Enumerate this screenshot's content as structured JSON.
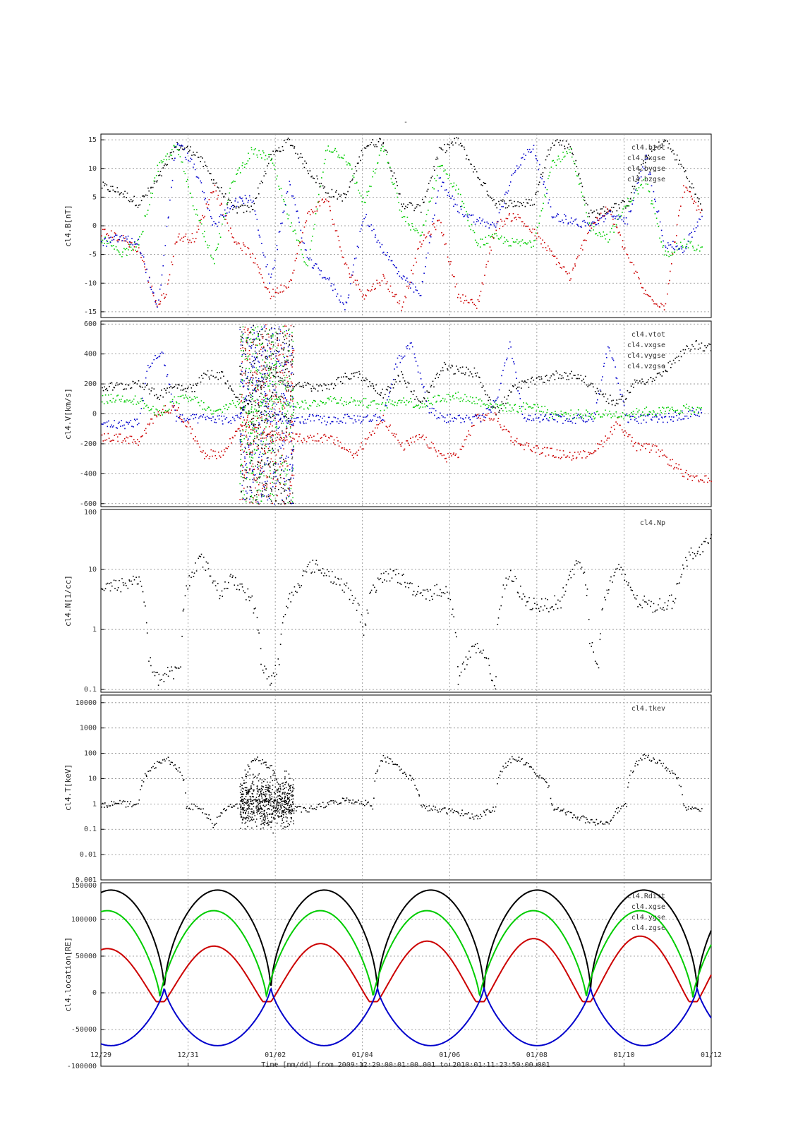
{
  "figure": {
    "top_mark": "-",
    "x_axis_title": "Time [mm/dd]  from 2009:12:29:00:01:00.001  to  2010:01:11:23:59:00.001",
    "x_ticks": [
      "12/29",
      "12/31",
      "01/02",
      "01/04",
      "01/06",
      "01/08",
      "01/10",
      "01/12"
    ]
  },
  "colors": {
    "black": "#000000",
    "red": "#cc0000",
    "green": "#00cc00",
    "blue": "#0000cc",
    "grid": "#888888"
  },
  "chart_data": [
    {
      "type": "scatter",
      "ylabel": "cl4.B[nT]",
      "ylim": [
        -16,
        16
      ],
      "scale": "linear",
      "y_ticks": [
        "15",
        "10",
        "5",
        "0",
        "-5",
        "-10",
        "-15"
      ],
      "legend": [
        "cl4.btot",
        "cl4.bxgse",
        "cl4.bygse",
        "cl4.bzgse"
      ],
      "legend_position": "top-right",
      "grid": true,
      "x_days": [
        0,
        13
      ],
      "series": [
        {
          "name": "cl4.btot",
          "color": "black",
          "x": [
            0.0,
            0.4,
            0.8,
            1.2,
            1.6,
            2.0,
            2.4,
            2.8,
            3.2,
            3.6,
            4.0,
            4.4,
            4.8,
            5.2,
            5.6,
            6.0,
            6.4,
            6.8,
            7.2,
            7.6,
            8.0,
            8.4,
            8.8,
            9.2,
            9.6,
            10.0,
            10.4,
            10.8,
            11.2,
            11.6,
            12.0,
            12.4,
            12.8
          ],
          "y": [
            7,
            6,
            4,
            8,
            14,
            13,
            8,
            3,
            3,
            12,
            15,
            10,
            6,
            5,
            14,
            15,
            4,
            3,
            13,
            15,
            9,
            4,
            4,
            4,
            15,
            14,
            2,
            3,
            4,
            12,
            15,
            10,
            3
          ]
        },
        {
          "name": "cl4.bxgse",
          "color": "red",
          "x": [
            0.0,
            0.4,
            0.8,
            1.2,
            1.4,
            1.6,
            2.0,
            2.4,
            2.8,
            3.2,
            3.6,
            4.0,
            4.4,
            4.8,
            5.2,
            5.6,
            6.0,
            6.4,
            6.8,
            7.2,
            7.6,
            8.0,
            8.4,
            8.8,
            9.2,
            9.6,
            10.0,
            10.4,
            10.8,
            11.2,
            11.6,
            12.0,
            12.4,
            12.8
          ],
          "y": [
            -1,
            -2,
            -4,
            -14,
            -11,
            -2,
            -2,
            7,
            -2,
            -5,
            -12,
            -10,
            2,
            5,
            -7,
            -12,
            -9,
            -14,
            -3,
            1,
            -12,
            -14,
            0,
            2,
            -1,
            -5,
            -9,
            0,
            3,
            -5,
            -12,
            -14,
            7,
            2
          ]
        },
        {
          "name": "cl4.bygse",
          "color": "green",
          "x": [
            0.0,
            0.4,
            0.8,
            1.2,
            1.6,
            2.0,
            2.4,
            2.8,
            3.2,
            3.6,
            4.0,
            4.4,
            4.8,
            5.2,
            5.6,
            6.0,
            6.4,
            6.8,
            7.2,
            7.6,
            8.0,
            8.4,
            8.8,
            9.2,
            9.6,
            10.0,
            10.4,
            10.8,
            11.2,
            11.6,
            12.0,
            12.4,
            12.8
          ],
          "y": [
            -2,
            -5,
            -3,
            10,
            14,
            3,
            -6,
            8,
            13,
            12,
            1,
            -7,
            14,
            12,
            4,
            14,
            2,
            -2,
            11,
            6,
            -3,
            -2,
            -3,
            -3,
            11,
            13,
            0,
            -2,
            4,
            8,
            -5,
            -3,
            -4
          ]
        },
        {
          "name": "cl4.bzgse",
          "color": "blue",
          "x": [
            0.0,
            0.4,
            0.8,
            1.2,
            1.6,
            2.0,
            2.4,
            2.8,
            3.2,
            3.6,
            4.0,
            4.4,
            4.8,
            5.2,
            5.6,
            6.0,
            6.4,
            6.8,
            7.2,
            7.6,
            8.0,
            8.4,
            8.8,
            9.2,
            9.6,
            10.0,
            10.4,
            10.8,
            11.2,
            11.6,
            12.0,
            12.4,
            12.8
          ],
          "y": [
            -3,
            -2,
            -3,
            -15,
            15,
            10,
            0,
            4,
            5,
            -10,
            8,
            -6,
            -9,
            -14,
            2,
            -4,
            -9,
            -12,
            8,
            3,
            1,
            0,
            10,
            14,
            2,
            1,
            0,
            2,
            1,
            12,
            -3,
            -4,
            2
          ]
        }
      ]
    },
    {
      "type": "scatter",
      "ylabel": "cl4.V[km/s]",
      "ylim": [
        -620,
        620
      ],
      "scale": "linear",
      "y_ticks": [
        "600",
        "400",
        "200",
        "0",
        "-200",
        "-400",
        "-600"
      ],
      "legend": [
        "cl4.vtot",
        "cl4.vxgse",
        "cl4.vygse",
        "cl4.vzgse"
      ],
      "legend_position": "top-right",
      "grid": true,
      "x_days": [
        0,
        13
      ],
      "series": [
        {
          "name": "cl4.vtot",
          "color": "black",
          "x": [
            0.0,
            0.5,
            0.8,
            1.2,
            1.5,
            2.0,
            2.2,
            2.6,
            3.0,
            3.6,
            4.0,
            4.4,
            4.6,
            5.0,
            5.4,
            6.0,
            6.4,
            6.8,
            7.3,
            7.6,
            8.0,
            8.4,
            8.8,
            9.3,
            9.8,
            10.2,
            10.6,
            11.0,
            11.4,
            11.8,
            12.2,
            12.6,
            13.0
          ],
          "y": [
            180,
            190,
            220,
            120,
            190,
            180,
            270,
            260,
            40,
            300,
            180,
            190,
            170,
            210,
            280,
            140,
            260,
            60,
            320,
            290,
            280,
            10,
            180,
            230,
            270,
            250,
            150,
            60,
            220,
            240,
            350,
            470,
            440
          ]
        },
        {
          "name": "cl4.vxgse",
          "color": "red",
          "x": [
            0.0,
            0.5,
            0.8,
            1.2,
            1.6,
            2.0,
            2.2,
            2.6,
            3.0,
            3.6,
            4.0,
            4.4,
            4.6,
            5.0,
            5.4,
            6.0,
            6.4,
            6.8,
            7.3,
            7.6,
            8.0,
            8.4,
            8.8,
            9.2,
            9.8,
            10.2,
            10.6,
            11.0,
            11.4,
            11.8,
            12.2,
            12.6,
            13.0
          ],
          "y": [
            -150,
            -160,
            -190,
            20,
            40,
            -160,
            -270,
            -260,
            -50,
            -140,
            -160,
            -160,
            -150,
            -180,
            -280,
            -20,
            -220,
            -150,
            -290,
            -270,
            -20,
            -20,
            -180,
            -230,
            -270,
            -280,
            -220,
            -50,
            -220,
            -230,
            -340,
            -440,
            -440
          ]
        },
        {
          "name": "cl4.vygse",
          "color": "green",
          "x": [
            0.0,
            0.5,
            0.8,
            1.2,
            1.6,
            2.0,
            2.4,
            2.8,
            3.2,
            3.6,
            4.0,
            4.4,
            4.8,
            5.2,
            5.6,
            6.0,
            6.4,
            6.8,
            7.2,
            7.6,
            8.0,
            8.4,
            8.8,
            9.2,
            9.6,
            10.0,
            10.4,
            10.8,
            11.2,
            11.6,
            12.0,
            12.4,
            12.8
          ],
          "y": [
            100,
            110,
            90,
            0,
            100,
            100,
            0,
            80,
            20,
            100,
            80,
            60,
            100,
            90,
            80,
            50,
            100,
            60,
            110,
            120,
            90,
            60,
            40,
            60,
            0,
            0,
            0,
            0,
            0,
            20,
            20,
            40,
            20
          ]
        },
        {
          "name": "cl4.vzgse",
          "color": "blue",
          "x": [
            0.0,
            0.4,
            0.8,
            1.0,
            1.3,
            1.6,
            2.0,
            2.4,
            2.8,
            3.0,
            3.3,
            3.6,
            4.0,
            4.4,
            4.8,
            5.2,
            5.6,
            6.0,
            6.3,
            6.6,
            7.0,
            7.4,
            7.8,
            8.1,
            8.4,
            8.7,
            9.0,
            9.4,
            9.8,
            10.2,
            10.5,
            10.8,
            11.2,
            11.6,
            12.0,
            12.4,
            12.8
          ],
          "y": [
            -60,
            -70,
            -50,
            330,
            410,
            -30,
            -30,
            -30,
            -40,
            10,
            400,
            -20,
            -50,
            -30,
            -40,
            -30,
            -30,
            -20,
            350,
            480,
            20,
            -30,
            -30,
            -30,
            80,
            460,
            -30,
            -30,
            -30,
            -30,
            -20,
            470,
            -30,
            -30,
            -30,
            0,
            20
          ]
        }
      ]
    },
    {
      "type": "scatter",
      "ylabel": "cl4.N[1/cc]",
      "ylim": [
        0.09,
        100
      ],
      "scale": "log",
      "y_ticks": [
        "100",
        "10",
        "1",
        "0.1"
      ],
      "legend": [
        "cl4.Np"
      ],
      "legend_position": "top-right",
      "grid": true,
      "x_days": [
        0,
        13
      ],
      "series": [
        {
          "name": "cl4.Np",
          "color": "black",
          "x": [
            0.0,
            0.4,
            0.8,
            1.0,
            1.2,
            1.5,
            1.7,
            1.9,
            2.1,
            2.5,
            2.8,
            3.2,
            3.4,
            3.6,
            3.8,
            4.2,
            4.5,
            5.6,
            5.8,
            6.2,
            6.6,
            7.0,
            7.3,
            7.6,
            8.0,
            8.4,
            8.7,
            9.0,
            9.4,
            9.8,
            10.2,
            10.4,
            10.6,
            11.0,
            11.4,
            11.8,
            12.2,
            12.6,
            13.0
          ],
          "y": [
            5,
            5.5,
            7,
            0.3,
            0.15,
            0.2,
            0.2,
            8,
            15,
            4,
            7,
            3,
            0.3,
            0.12,
            0.3,
            6,
            12,
            0.9,
            5,
            9,
            5,
            4,
            5,
            0.15,
            0.5,
            0.1,
            8,
            3,
            2.5,
            3,
            14,
            0.6,
            0.25,
            10,
            3,
            2.5,
            3,
            20,
            30
          ]
        }
      ]
    },
    {
      "type": "scatter",
      "ylabel": "cl4.T[keV]",
      "ylim": [
        0.001,
        20000
      ],
      "scale": "log",
      "y_ticks": [
        "10000",
        "1000",
        "100",
        "10",
        "1",
        "0.1",
        "0.01",
        "0.001"
      ],
      "legend": [
        "cl4.tkev"
      ],
      "legend_position": "top-right",
      "grid": true,
      "x_days": [
        0,
        13
      ],
      "series": [
        {
          "name": "cl4.tkev",
          "color": "black",
          "x": [
            0.0,
            0.4,
            0.8,
            1.0,
            1.2,
            1.4,
            1.6,
            1.8,
            2.0,
            2.4,
            2.7,
            3.0,
            3.3,
            3.6,
            3.8,
            4.0,
            4.4,
            4.8,
            5.2,
            5.6,
            5.8,
            6.0,
            6.4,
            6.8,
            7.2,
            7.6,
            8.0,
            8.4,
            8.8,
            9.2,
            9.6,
            10.0,
            10.4,
            10.8,
            11.2,
            11.6,
            12.0,
            12.4,
            12.8
          ],
          "y": [
            1.0,
            1.1,
            0.9,
            20,
            40,
            60,
            30,
            0.8,
            0.8,
            0.12,
            0.8,
            1.0,
            60,
            30,
            0.8,
            0.7,
            0.6,
            1.0,
            1.5,
            1.2,
            0.8,
            70,
            20,
            0.8,
            0.6,
            0.5,
            0.3,
            0.7,
            70,
            20,
            0.8,
            0.4,
            0.2,
            0.2,
            1.0,
            80,
            30,
            0.8,
            0.7
          ]
        }
      ]
    },
    {
      "type": "line",
      "ylabel": "cl4.location[RE]",
      "ylim": [
        -100000,
        150000
      ],
      "scale": "linear",
      "y_ticks": [
        "150000",
        "100000",
        "50000",
        "0",
        "-50000",
        "-100000"
      ],
      "legend": [
        "cl4.Rdist",
        "cl4.xgse",
        "cl4.ygse",
        "cl4.zgse"
      ],
      "legend_position": "top-right",
      "grid": true,
      "x_days": [
        0,
        13
      ],
      "orbit_period_days": 2.27,
      "series": [
        {
          "name": "cl4.Rdist",
          "color": "black"
        },
        {
          "name": "cl4.xgse",
          "color": "red"
        },
        {
          "name": "cl4.ygse",
          "color": "green"
        },
        {
          "name": "cl4.zgse",
          "color": "blue"
        }
      ]
    }
  ]
}
